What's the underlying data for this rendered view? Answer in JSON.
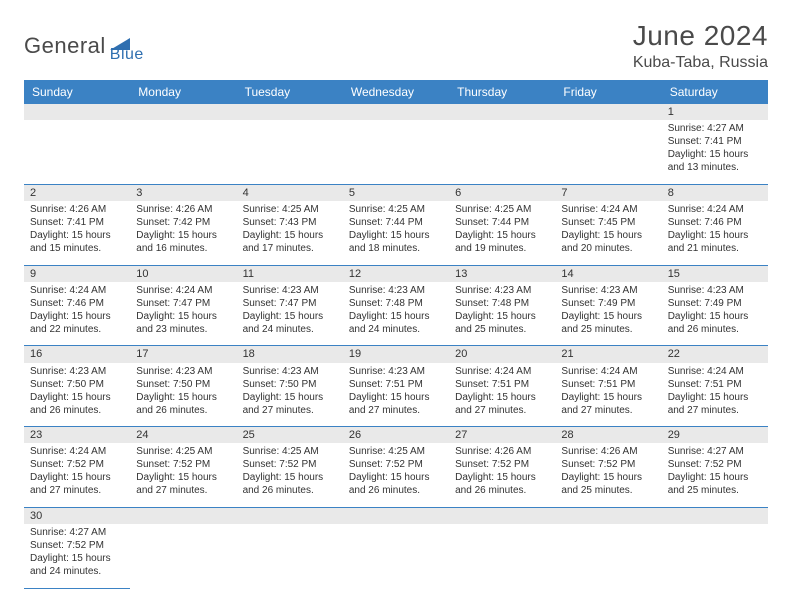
{
  "logo": {
    "gen": "Genera",
    "l": "l",
    "blue": "Blue"
  },
  "title": "June 2024",
  "location": "Kuba-Taba, Russia",
  "headers": [
    "Sunday",
    "Monday",
    "Tuesday",
    "Wednesday",
    "Thursday",
    "Friday",
    "Saturday"
  ],
  "colors": {
    "header_bg": "#3b82c4",
    "header_fg": "#ffffff",
    "daynum_bg": "#e9e9e9",
    "border": "#3b82c4",
    "text": "#333333",
    "title_text": "#4a4a4a",
    "logo_blue": "#2f6fb0"
  },
  "weeks": [
    [
      null,
      null,
      null,
      null,
      null,
      null,
      {
        "n": "1",
        "r": "4:27 AM",
        "s": "7:41 PM",
        "d": "15 hours and 13 minutes."
      }
    ],
    [
      {
        "n": "2",
        "r": "4:26 AM",
        "s": "7:41 PM",
        "d": "15 hours and 15 minutes."
      },
      {
        "n": "3",
        "r": "4:26 AM",
        "s": "7:42 PM",
        "d": "15 hours and 16 minutes."
      },
      {
        "n": "4",
        "r": "4:25 AM",
        "s": "7:43 PM",
        "d": "15 hours and 17 minutes."
      },
      {
        "n": "5",
        "r": "4:25 AM",
        "s": "7:44 PM",
        "d": "15 hours and 18 minutes."
      },
      {
        "n": "6",
        "r": "4:25 AM",
        "s": "7:44 PM",
        "d": "15 hours and 19 minutes."
      },
      {
        "n": "7",
        "r": "4:24 AM",
        "s": "7:45 PM",
        "d": "15 hours and 20 minutes."
      },
      {
        "n": "8",
        "r": "4:24 AM",
        "s": "7:46 PM",
        "d": "15 hours and 21 minutes."
      }
    ],
    [
      {
        "n": "9",
        "r": "4:24 AM",
        "s": "7:46 PM",
        "d": "15 hours and 22 minutes."
      },
      {
        "n": "10",
        "r": "4:24 AM",
        "s": "7:47 PM",
        "d": "15 hours and 23 minutes."
      },
      {
        "n": "11",
        "r": "4:23 AM",
        "s": "7:47 PM",
        "d": "15 hours and 24 minutes."
      },
      {
        "n": "12",
        "r": "4:23 AM",
        "s": "7:48 PM",
        "d": "15 hours and 24 minutes."
      },
      {
        "n": "13",
        "r": "4:23 AM",
        "s": "7:48 PM",
        "d": "15 hours and 25 minutes."
      },
      {
        "n": "14",
        "r": "4:23 AM",
        "s": "7:49 PM",
        "d": "15 hours and 25 minutes."
      },
      {
        "n": "15",
        "r": "4:23 AM",
        "s": "7:49 PM",
        "d": "15 hours and 26 minutes."
      }
    ],
    [
      {
        "n": "16",
        "r": "4:23 AM",
        "s": "7:50 PM",
        "d": "15 hours and 26 minutes."
      },
      {
        "n": "17",
        "r": "4:23 AM",
        "s": "7:50 PM",
        "d": "15 hours and 26 minutes."
      },
      {
        "n": "18",
        "r": "4:23 AM",
        "s": "7:50 PM",
        "d": "15 hours and 27 minutes."
      },
      {
        "n": "19",
        "r": "4:23 AM",
        "s": "7:51 PM",
        "d": "15 hours and 27 minutes."
      },
      {
        "n": "20",
        "r": "4:24 AM",
        "s": "7:51 PM",
        "d": "15 hours and 27 minutes."
      },
      {
        "n": "21",
        "r": "4:24 AM",
        "s": "7:51 PM",
        "d": "15 hours and 27 minutes."
      },
      {
        "n": "22",
        "r": "4:24 AM",
        "s": "7:51 PM",
        "d": "15 hours and 27 minutes."
      }
    ],
    [
      {
        "n": "23",
        "r": "4:24 AM",
        "s": "7:52 PM",
        "d": "15 hours and 27 minutes."
      },
      {
        "n": "24",
        "r": "4:25 AM",
        "s": "7:52 PM",
        "d": "15 hours and 27 minutes."
      },
      {
        "n": "25",
        "r": "4:25 AM",
        "s": "7:52 PM",
        "d": "15 hours and 26 minutes."
      },
      {
        "n": "26",
        "r": "4:25 AM",
        "s": "7:52 PM",
        "d": "15 hours and 26 minutes."
      },
      {
        "n": "27",
        "r": "4:26 AM",
        "s": "7:52 PM",
        "d": "15 hours and 26 minutes."
      },
      {
        "n": "28",
        "r": "4:26 AM",
        "s": "7:52 PM",
        "d": "15 hours and 25 minutes."
      },
      {
        "n": "29",
        "r": "4:27 AM",
        "s": "7:52 PM",
        "d": "15 hours and 25 minutes."
      }
    ],
    [
      {
        "n": "30",
        "r": "4:27 AM",
        "s": "7:52 PM",
        "d": "15 hours and 24 minutes."
      },
      null,
      null,
      null,
      null,
      null,
      null
    ]
  ],
  "labels": {
    "sunrise": "Sunrise:",
    "sunset": "Sunset:",
    "daylight": "Daylight:"
  }
}
